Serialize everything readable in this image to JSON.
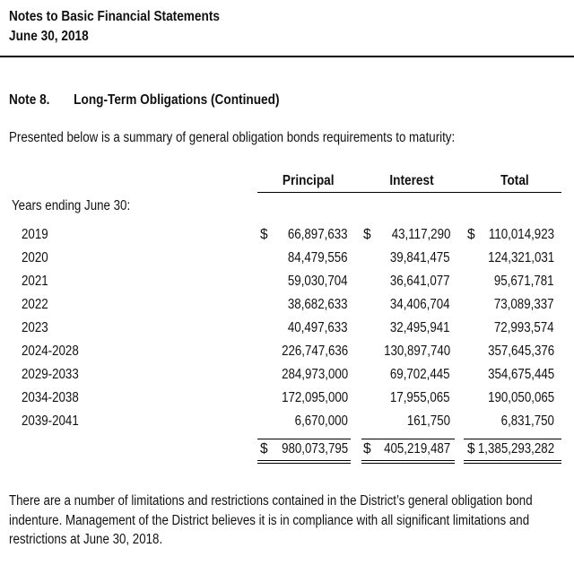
{
  "header": {
    "title": "Notes to Basic Financial Statements",
    "date": "June 30, 2018"
  },
  "note": {
    "number": "Note 8.",
    "title": "Long-Term Obligations (Continued)"
  },
  "intro": "Presented below is a summary of general obligation bonds requirements to maturity:",
  "table": {
    "columns": [
      "Principal",
      "Interest",
      "Total"
    ],
    "years_label": "Years ending June 30:",
    "currency_symbol": "$",
    "rows": [
      {
        "year": "2019",
        "principal": "66,897,633",
        "interest": "43,117,290",
        "total": "110,014,923"
      },
      {
        "year": "2020",
        "principal": "84,479,556",
        "interest": "39,841,475",
        "total": "124,321,031"
      },
      {
        "year": "2021",
        "principal": "59,030,704",
        "interest": "36,641,077",
        "total": "95,671,781"
      },
      {
        "year": "2022",
        "principal": "38,682,633",
        "interest": "34,406,704",
        "total": "73,089,337"
      },
      {
        "year": "2023",
        "principal": "40,497,633",
        "interest": "32,495,941",
        "total": "72,993,574"
      },
      {
        "year": "2024-2028",
        "principal": "226,747,636",
        "interest": "130,897,740",
        "total": "357,645,376"
      },
      {
        "year": "2029-2033",
        "principal": "284,973,000",
        "interest": "69,702,445",
        "total": "354,675,445"
      },
      {
        "year": "2034-2038",
        "principal": "172,095,000",
        "interest": "17,955,065",
        "total": "190,050,065"
      },
      {
        "year": "2039-2041",
        "principal": "6,670,000",
        "interest": "161,750",
        "total": "6,831,750"
      }
    ],
    "totals": {
      "principal": "980,073,795",
      "interest": "405,219,487",
      "total": "1,385,293,282"
    }
  },
  "footer": [
    "There are a number of limitations and restrictions contained in the District’s general obligation bond",
    "indenture. Management of the District believes it is in compliance with all significant limitations and",
    "restrictions at June 30, 2018."
  ]
}
